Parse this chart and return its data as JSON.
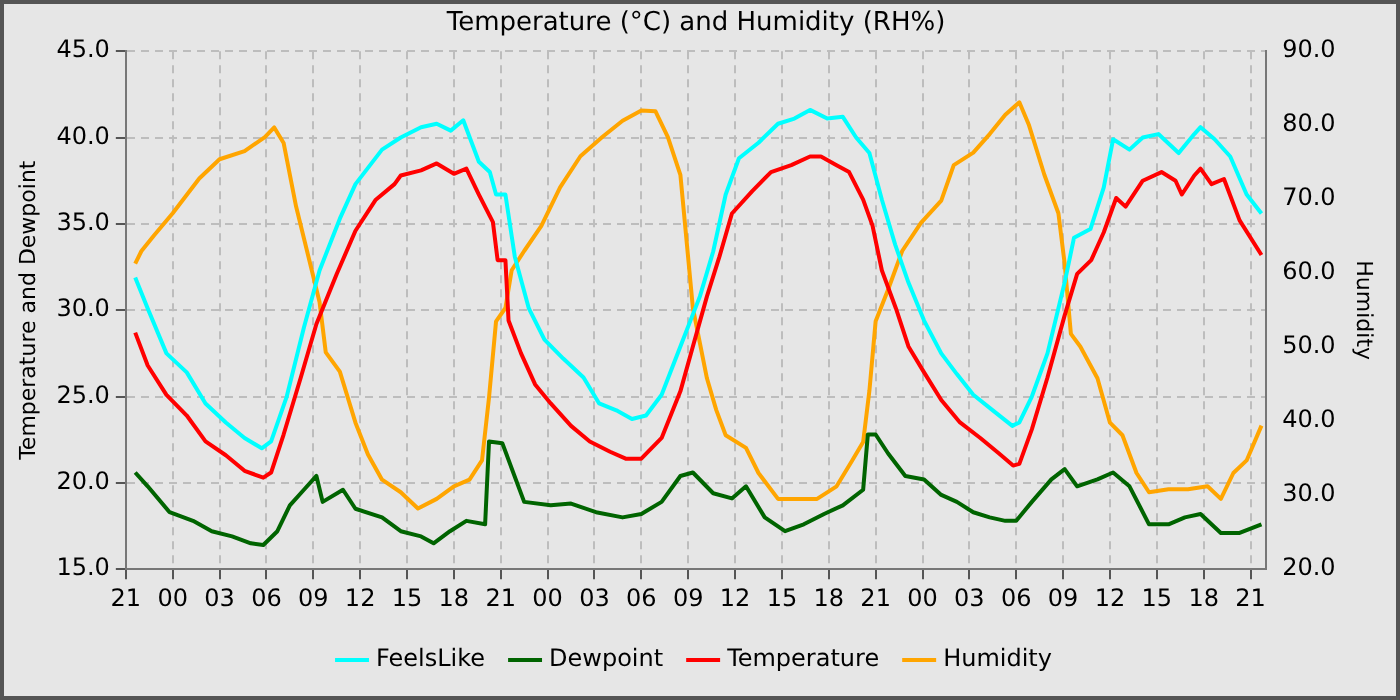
{
  "chart_data": {
    "type": "line",
    "title": "Temperature (°C) and Humidity (RH%)",
    "ylabel": "Temperature and Dewpoint",
    "y2label": "Humidity",
    "xlim": [
      "--01-01T21:00",
      "--01-04T22:00"
    ],
    "xticks": [
      {
        "value": "--01-01T21:00",
        "label": "21"
      },
      {
        "value": "--01-02T00:00",
        "label": "00"
      },
      {
        "value": "--01-02T03:00",
        "label": "03"
      },
      {
        "value": "--01-02T06:00",
        "label": "06"
      },
      {
        "value": "--01-02T09:00",
        "label": "09"
      },
      {
        "value": "--01-02T12:00",
        "label": "12"
      },
      {
        "value": "--01-02T15:00",
        "label": "15"
      },
      {
        "value": "--01-02T18:00",
        "label": "18"
      },
      {
        "value": "--01-02T21:00",
        "label": "21"
      },
      {
        "value": "--01-03T00:00",
        "label": "00"
      },
      {
        "value": "--01-03T03:00",
        "label": "03"
      },
      {
        "value": "--01-03T06:00",
        "label": "06"
      },
      {
        "value": "--01-03T09:00",
        "label": "09"
      },
      {
        "value": "--01-03T12:00",
        "label": "12"
      },
      {
        "value": "--01-03T15:00",
        "label": "15"
      },
      {
        "value": "--01-03T18:00",
        "label": "18"
      },
      {
        "value": "--01-03T21:00",
        "label": "21"
      },
      {
        "value": "--01-04T00:00",
        "label": "00"
      },
      {
        "value": "--01-04T03:00",
        "label": "03"
      },
      {
        "value": "--01-04T06:00",
        "label": "06"
      },
      {
        "value": "--01-04T09:00",
        "label": "09"
      },
      {
        "value": "--01-04T12:00",
        "label": "12"
      },
      {
        "value": "--01-04T15:00",
        "label": "15"
      },
      {
        "value": "--01-04T18:00",
        "label": "18"
      },
      {
        "value": "--01-04T21:00",
        "label": "21"
      }
    ],
    "ylim": [
      15,
      45
    ],
    "yticks": [
      {
        "value": 15,
        "label": "15.0"
      },
      {
        "value": 20,
        "label": "20.0"
      },
      {
        "value": 25,
        "label": "25.0"
      },
      {
        "value": 30,
        "label": "30.0"
      },
      {
        "value": 35,
        "label": "35.0"
      },
      {
        "value": 40,
        "label": "40.0"
      },
      {
        "value": 45,
        "label": "45.0"
      }
    ],
    "y2lim": [
      20,
      90
    ],
    "y2ticks": [
      {
        "value": 20,
        "label": "20.0"
      },
      {
        "value": 30,
        "label": "30.0"
      },
      {
        "value": 40,
        "label": "40.0"
      },
      {
        "value": 50,
        "label": "50.0"
      },
      {
        "value": 60,
        "label": "60.0"
      },
      {
        "value": 70,
        "label": "70.0"
      },
      {
        "value": 80,
        "label": "80.0"
      },
      {
        "value": 90,
        "label": "90.0"
      }
    ],
    "grid": true,
    "legend": "bottom",
    "marker": "none",
    "line_style": "solid",
    "series": [
      {
        "name": "FeelsLike",
        "color": "#00ffff",
        "x": [
          "--01-01T21:36",
          "--01-01T22:24",
          "--01-01T23:36",
          "--01-02T00:54",
          "--01-02T02:06",
          "--01-02T03:24",
          "--01-02T04:36",
          "--01-02T05:42",
          "--01-02T06:18",
          "--01-02T07:18",
          "--01-02T08:24",
          "--01-02T09:24",
          "--01-02T10:42",
          "--01-02T11:42",
          "--01-02T13:24",
          "--01-02T14:36",
          "--01-02T15:54",
          "--01-02T16:54",
          "--01-02T17:48",
          "--01-02T18:36",
          "--01-02T19:36",
          "--01-02T20:18",
          "--01-02T20:42",
          "--01-02T21:18",
          "--01-02T21:54",
          "--01-02T22:48",
          "--01-02T23:48",
          "--01-03T01:00",
          "--01-03T02:18",
          "--01-03T03:18",
          "--01-03T04:24",
          "--01-03T05:24",
          "--01-03T06:18",
          "--01-03T07:18",
          "--01-03T08:30",
          "--01-03T09:45",
          "--01-03T10:36",
          "--01-03T11:24",
          "--01-03T12:15",
          "--01-03T13:30",
          "--01-03T14:45",
          "--01-03T15:48",
          "--01-03T16:48",
          "--01-03T17:54",
          "--01-03T18:54",
          "--01-03T19:45",
          "--01-03T20:36",
          "--01-03T21:24",
          "--01-03T22:15",
          "--01-03T23:06",
          "--01-04T00:06",
          "--01-04T01:12",
          "--01-04T02:12",
          "--01-04T03:15",
          "--01-04T04:30",
          "--01-04T05:45",
          "--01-04T06:12",
          "--01-04T07:00",
          "--01-04T08:00",
          "--01-04T09:06",
          "--01-04T09:42",
          "--01-04T10:45",
          "--01-04T11:36",
          "--01-04T12:12",
          "--01-04T13:15",
          "--01-04T14:06",
          "--01-04T15:06",
          "--01-04T16:24",
          "--01-04T17:24",
          "--01-04T17:48",
          "--01-04T18:42",
          "--01-04T19:42",
          "--01-04T20:45",
          "--01-04T21:42"
        ],
        "values": [
          31.9,
          30.1,
          27.5,
          26.4,
          24.6,
          23.5,
          22.6,
          22.0,
          22.4,
          25.0,
          29.0,
          32.3,
          35.3,
          37.3,
          39.3,
          40.0,
          40.6,
          40.8,
          40.4,
          41.0,
          38.6,
          38.0,
          36.7,
          36.7,
          33.1,
          30.1,
          28.3,
          27.2,
          26.1,
          24.6,
          24.2,
          23.7,
          23.9,
          25.1,
          27.9,
          30.8,
          33.4,
          36.7,
          38.8,
          39.7,
          40.8,
          41.1,
          41.6,
          41.1,
          41.2,
          40.0,
          39.1,
          36.4,
          33.8,
          31.6,
          29.4,
          27.5,
          26.3,
          25.1,
          24.2,
          23.3,
          23.5,
          25.0,
          27.5,
          31.6,
          34.2,
          34.7,
          37.1,
          39.9,
          39.3,
          40.0,
          40.2,
          39.1,
          40.2,
          40.6,
          39.9,
          38.9,
          36.7,
          35.6
        ]
      },
      {
        "name": "Dewpoint",
        "color": "#006400",
        "x": [
          "--01-01T21:36",
          "--01-01T22:24",
          "--01-01T23:48",
          "--01-02T01:18",
          "--01-02T02:30",
          "--01-02T03:48",
          "--01-02T05:00",
          "--01-02T05:48",
          "--01-02T06:42",
          "--01-02T07:30",
          "--01-02T08:24",
          "--01-02T09:12",
          "--01-02T09:36",
          "--01-02T10:54",
          "--01-02T11:42",
          "--01-02T13:24",
          "--01-02T14:36",
          "--01-02T15:54",
          "--01-02T16:42",
          "--01-02T17:45",
          "--01-02T18:48",
          "--01-02T20:00",
          "--01-02T20:15",
          "--01-02T21:06",
          "--01-02T22:30",
          "--01-03T00:12",
          "--01-03T01:30",
          "--01-03T03:06",
          "--01-03T04:48",
          "--01-03T06:00",
          "--01-03T07:18",
          "--01-03T08:30",
          "--01-03T09:18",
          "--01-03T10:36",
          "--01-03T11:48",
          "--01-03T12:42",
          "--01-03T13:54",
          "--01-03T15:12",
          "--01-03T16:24",
          "--01-03T17:42",
          "--01-03T18:54",
          "--01-03T20:12",
          "--01-03T20:30",
          "--01-03T21:00",
          "--01-03T21:48",
          "--01-03T22:54",
          "--01-04T00:06",
          "--01-04T01:12",
          "--01-04T02:12",
          "--01-04T03:15",
          "--01-04T04:18",
          "--01-04T05:18",
          "--01-04T06:00",
          "--01-04T07:00",
          "--01-04T08:15",
          "--01-04T09:06",
          "--01-04T09:54",
          "--01-04T11:12",
          "--01-04T12:12",
          "--01-04T13:15",
          "--01-04T14:30",
          "--01-04T15:45",
          "--01-04T16:48",
          "--01-04T17:48",
          "--01-04T19:06",
          "--01-04T20:18",
          "--01-04T21:42"
        ],
        "values": [
          20.6,
          19.8,
          18.3,
          17.8,
          17.2,
          16.9,
          16.5,
          16.4,
          17.2,
          18.7,
          19.6,
          20.4,
          18.9,
          19.6,
          18.5,
          18.0,
          17.2,
          16.9,
          16.5,
          17.2,
          17.8,
          17.6,
          22.4,
          22.3,
          18.9,
          18.7,
          18.8,
          18.3,
          18.0,
          18.2,
          18.9,
          20.4,
          20.6,
          19.4,
          19.1,
          19.8,
          18.0,
          17.2,
          17.6,
          18.2,
          18.7,
          19.6,
          22.8,
          22.8,
          21.7,
          20.4,
          20.2,
          19.3,
          18.9,
          18.3,
          18.0,
          17.8,
          17.8,
          18.9,
          20.2,
          20.8,
          19.8,
          20.2,
          20.6,
          19.8,
          17.6,
          17.6,
          18.0,
          18.2,
          17.1,
          17.1,
          17.6
        ]
      },
      {
        "name": "Temperature",
        "color": "#ff0000",
        "x": [
          "--01-01T21:36",
          "--01-01T22:24",
          "--01-01T23:36",
          "--01-02T00:54",
          "--01-02T02:06",
          "--01-02T03:24",
          "--01-02T04:36",
          "--01-02T05:48",
          "--01-02T06:18",
          "--01-02T07:06",
          "--01-02T08:12",
          "--01-02T09:12",
          "--01-02T10:30",
          "--01-02T11:42",
          "--01-02T13:00",
          "--01-02T14:12",
          "--01-02T14:36",
          "--01-02T15:54",
          "--01-02T16:54",
          "--01-02T18:00",
          "--01-02T18:48",
          "--01-02T19:36",
          "--01-02T20:30",
          "--01-02T20:48",
          "--01-02T21:18",
          "--01-02T21:30",
          "--01-02T22:18",
          "--01-02T23:12",
          "--01-03T00:12",
          "--01-03T01:30",
          "--01-03T02:42",
          "--01-03T04:00",
          "--01-03T05:00",
          "--01-03T06:00",
          "--01-03T07:18",
          "--01-03T08:30",
          "--01-03T09:18",
          "--01-03T10:12",
          "--01-03T11:00",
          "--01-03T11:48",
          "--01-03T13:06",
          "--01-03T14:18",
          "--01-03T15:36",
          "--01-03T16:48",
          "--01-03T17:30",
          "--01-03T18:30",
          "--01-03T19:18",
          "--01-03T20:12",
          "--01-03T20:48",
          "--01-03T21:24",
          "--01-03T22:18",
          "--01-03T23:06",
          "--01-04T00:06",
          "--01-04T01:12",
          "--01-04T02:24",
          "--01-04T03:42",
          "--01-04T04:54",
          "--01-04T05:48",
          "--01-04T06:12",
          "--01-04T07:00",
          "--01-04T08:00",
          "--01-04T09:06",
          "--01-04T09:54",
          "--01-04T10:48",
          "--01-04T11:36",
          "--01-04T12:24",
          "--01-04T13:00",
          "--01-04T14:06",
          "--01-04T15:18",
          "--01-04T16:12",
          "--01-04T16:36",
          "--01-04T17:24",
          "--01-04T17:48",
          "--01-04T18:30",
          "--01-04T19:18",
          "--01-04T20:18",
          "--01-04T21:42"
        ],
        "values": [
          28.7,
          26.8,
          25.1,
          23.9,
          22.4,
          21.6,
          20.7,
          20.3,
          20.6,
          22.8,
          26.1,
          29.2,
          32.1,
          34.6,
          36.4,
          37.3,
          37.8,
          38.1,
          38.5,
          37.9,
          38.2,
          36.7,
          35.1,
          32.9,
          32.9,
          29.4,
          27.5,
          25.7,
          24.6,
          23.3,
          22.4,
          21.8,
          21.4,
          21.4,
          22.6,
          25.3,
          27.9,
          30.8,
          33.1,
          35.6,
          36.9,
          38.0,
          38.4,
          38.9,
          38.9,
          38.4,
          38.0,
          36.4,
          34.9,
          32.3,
          30.1,
          27.9,
          26.4,
          24.8,
          23.5,
          22.6,
          21.7,
          21.0,
          21.1,
          23.1,
          26.1,
          29.7,
          32.1,
          32.9,
          34.5,
          36.5,
          36.0,
          37.5,
          38.0,
          37.5,
          36.7,
          37.8,
          38.2,
          37.3,
          37.6,
          35.2,
          33.2
        ]
      },
      {
        "name": "Humidity",
        "color": "#ffa500",
        "axis": "y2",
        "x": [
          "--01-01T21:36",
          "--01-01T22:00",
          "--01-01T22:48",
          "--01-02T00:00",
          "--01-02T01:42",
          "--01-02T03:00",
          "--01-02T04:36",
          "--01-02T05:54",
          "--01-02T06:30",
          "--01-02T07:06",
          "--01-02T07:54",
          "--01-02T08:36",
          "--01-02T09:24",
          "--01-02T09:48",
          "--01-02T10:42",
          "--01-02T11:42",
          "--01-02T12:30",
          "--01-02T13:24",
          "--01-02T14:36",
          "--01-02T15:42",
          "--01-02T16:54",
          "--01-02T18:00",
          "--01-02T19:00",
          "--01-02T19:48",
          "--01-02T20:15",
          "--01-02T20:42",
          "--01-02T21:18",
          "--01-02T21:42",
          "--01-02T22:30",
          "--01-02T23:36",
          "--01-03T00:48",
          "--01-03T02:06",
          "--01-03T03:30",
          "--01-03T04:48",
          "--01-03T06:00",
          "--01-03T06:54",
          "--01-03T07:42",
          "--01-03T08:30",
          "--01-03T09:18",
          "--01-03T10:12",
          "--01-03T10:48",
          "--01-03T11:24",
          "--01-03T12:42",
          "--01-03T13:30",
          "--01-03T14:45",
          "--01-03T16:00",
          "--01-03T17:15",
          "--01-03T18:30",
          "--01-03T19:30",
          "--01-03T20:12",
          "--01-03T20:36",
          "--01-03T21:00",
          "--01-03T21:48",
          "--01-03T22:42",
          "--01-03T23:54",
          "--01-04T01:12",
          "--01-04T02:00",
          "--01-04T03:15",
          "--01-04T04:18",
          "--01-04T05:18",
          "--01-04T06:12",
          "--01-04T06:48",
          "--01-04T07:48",
          "--01-04T08:42",
          "--01-04T09:06",
          "--01-04T09:30",
          "--01-04T10:06",
          "--01-04T11:12",
          "--01-04T12:00",
          "--01-04T12:48",
          "--01-04T13:42",
          "--01-04T14:30",
          "--01-04T15:45",
          "--01-04T17:00",
          "--01-04T18:15",
          "--01-04T19:06",
          "--01-04T19:54",
          "--01-04T20:45",
          "--01-04T21:42"
        ],
        "values": [
          61.3,
          63.0,
          65.1,
          68.1,
          72.8,
          75.4,
          76.5,
          78.4,
          79.7,
          77.6,
          69.0,
          63.0,
          56.1,
          49.3,
          46.7,
          39.8,
          35.5,
          32.1,
          30.4,
          28.2,
          29.5,
          31.2,
          32.1,
          34.7,
          43.2,
          53.5,
          55.3,
          60.4,
          63.0,
          66.4,
          71.6,
          75.8,
          78.4,
          80.6,
          82.0,
          81.9,
          78.4,
          73.3,
          55.3,
          45.8,
          41.5,
          38.1,
          36.4,
          33.0,
          29.5,
          29.5,
          29.5,
          31.2,
          34.7,
          37.2,
          44.1,
          53.5,
          57.8,
          63.0,
          66.8,
          69.8,
          74.6,
          76.3,
          78.8,
          81.4,
          83.1,
          80.1,
          73.3,
          68.1,
          61.3,
          51.8,
          50.1,
          45.8,
          39.8,
          38.1,
          33.0,
          30.4,
          30.8,
          30.8,
          31.2,
          29.5,
          33.0,
          34.7,
          39.4
        ]
      }
    ]
  }
}
